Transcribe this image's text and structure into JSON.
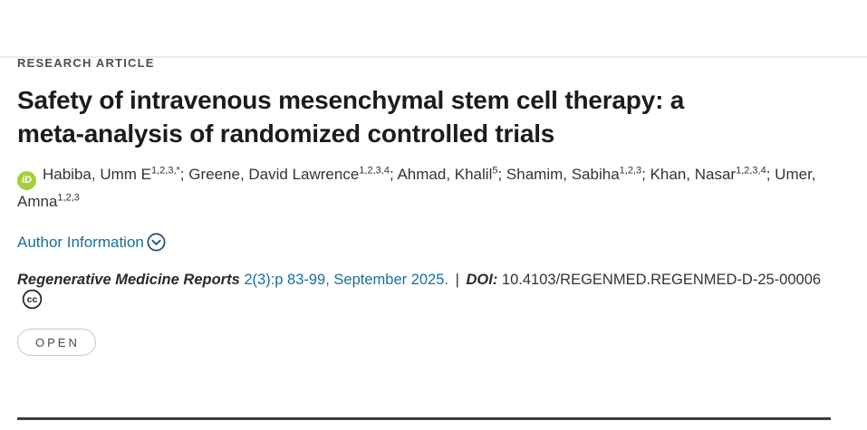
{
  "page": {
    "background": "#ffffff",
    "top_border_color": "#ececec",
    "link_color": "#186f9d",
    "rule_color": "#3e3e3e"
  },
  "article": {
    "kicker": "RESEARCH ARTICLE",
    "title": "Safety of intravenous mesenchymal stem cell therapy: a meta-analysis of randomized controlled trials",
    "authors": [
      {
        "name": "Habiba, Umm E",
        "sup": "1,2,3,*"
      },
      {
        "name": "Greene, David Lawrence",
        "sup": "1,2,3,4"
      },
      {
        "name": "Ahmad, Khalil",
        "sup": "5"
      },
      {
        "name": "Shamim, Sabiha",
        "sup": "1,2,3"
      },
      {
        "name": "Khan, Nasar",
        "sup": "1,2,3,4"
      },
      {
        "name": "Umer, Amna",
        "sup": "1,2,3"
      }
    ],
    "author_separator": "; ",
    "author_information_label": "Author Information",
    "open_label": "OPEN"
  },
  "citation": {
    "journal": "Regenerative Medicine Reports",
    "issue": "2(3):p 83-99, September 2025.",
    "separator": "|",
    "doi_label": "DOI:",
    "doi_value": "10.4103/REGENMED.REGENMED-D-25-00006"
  },
  "icons": {
    "orcid_icon_text": "iD",
    "orcid_color": "#a6ce39",
    "chevron_icon_color": "#1d4e79",
    "cc_icon_text": "cc",
    "cc_icon_color": "#222222"
  }
}
